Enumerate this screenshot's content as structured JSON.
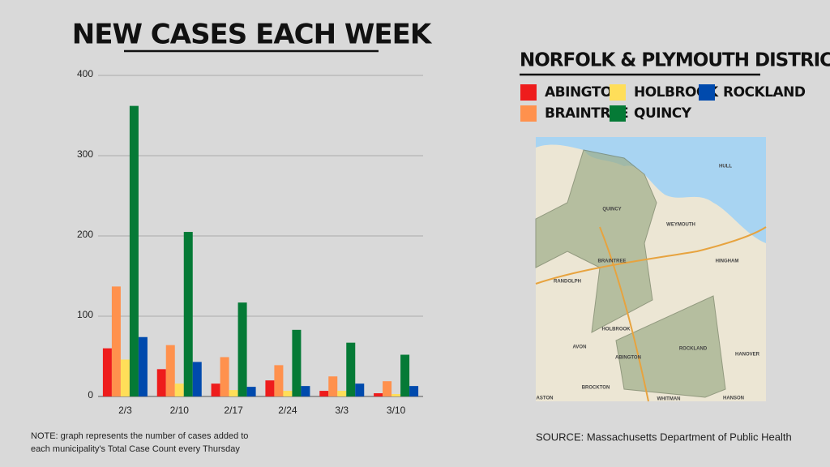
{
  "chart_data": {
    "type": "bar",
    "title": "NEW CASES EACH WEEK",
    "categories": [
      "2/3",
      "2/10",
      "2/17",
      "2/24",
      "3/3",
      "3/10"
    ],
    "series": [
      {
        "name": "ABINGTON",
        "color": "#ee1c1c",
        "values": [
          60,
          34,
          16,
          20,
          7,
          4
        ]
      },
      {
        "name": "BRAINTREE",
        "color": "#ff914d",
        "values": [
          137,
          64,
          49,
          39,
          25,
          19
        ]
      },
      {
        "name": "HOLBROOK",
        "color": "#ffde59",
        "values": [
          46,
          16,
          8,
          7,
          7,
          3
        ]
      },
      {
        "name": "QUINCY",
        "color": "#057a36",
        "values": [
          362,
          205,
          117,
          83,
          67,
          52
        ]
      },
      {
        "name": "ROCKLAND",
        "color": "#004aad",
        "values": [
          74,
          43,
          12,
          13,
          16,
          13
        ]
      }
    ],
    "ylim": [
      0,
      400
    ],
    "yticks": [
      0,
      100,
      200,
      300,
      400
    ],
    "grid": true,
    "legend_title": "NORFOLK & PLYMOUTH DISTRICT",
    "note": [
      "NOTE: graph represents the number of cases added to",
      "each municipality's Total Case Count every Thursday"
    ],
    "source": "SOURCE: Massachusetts Department of Public Health"
  },
  "map": {
    "labels": [
      "QUINCY",
      "WEYMOUTH",
      "BRAINTREE",
      "RANDOLPH",
      "HINGHAM",
      "HOLBROOK",
      "AVON",
      "ABINGTON",
      "ROCKLAND",
      "HANOVER",
      "BROCKTON",
      "WHITMAN",
      "HANSON",
      "ASTON",
      "HULL"
    ]
  }
}
